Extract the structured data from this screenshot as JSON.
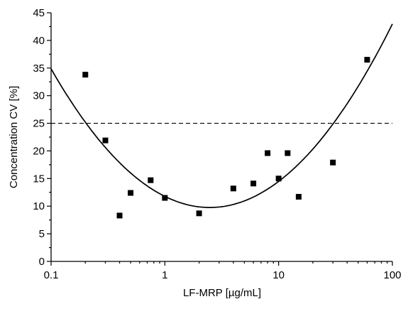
{
  "chart_data": {
    "type": "scatter",
    "title": "",
    "xlabel": "LF-MRP [µg/mL]",
    "ylabel": "Concentration CV [%]",
    "xscale": "log",
    "xlim": [
      0.1,
      100
    ],
    "ylim": [
      0,
      45
    ],
    "x_ticks": [
      "0.1",
      "1",
      "10",
      "100"
    ],
    "y_ticks": [
      "0",
      "5",
      "10",
      "15",
      "20",
      "25",
      "30",
      "35",
      "40",
      "45"
    ],
    "grid": false,
    "legend": "none",
    "points": [
      {
        "x": 0.2,
        "y": 33.8
      },
      {
        "x": 0.3,
        "y": 21.9
      },
      {
        "x": 0.4,
        "y": 8.3
      },
      {
        "x": 0.5,
        "y": 12.4
      },
      {
        "x": 0.75,
        "y": 14.7
      },
      {
        "x": 1.0,
        "y": 11.5
      },
      {
        "x": 2.0,
        "y": 8.7
      },
      {
        "x": 4.0,
        "y": 13.2
      },
      {
        "x": 6.0,
        "y": 14.1
      },
      {
        "x": 8.0,
        "y": 19.6
      },
      {
        "x": 10.0,
        "y": 15.0
      },
      {
        "x": 12.0,
        "y": 19.6
      },
      {
        "x": 15.0,
        "y": 11.7
      },
      {
        "x": 30.0,
        "y": 17.9
      },
      {
        "x": 60.0,
        "y": 36.5
      }
    ],
    "fit_curve": {
      "model": "quadratic in log10(x)",
      "x": [
        0.1,
        0.2,
        0.5,
        1,
        2.5,
        5,
        10,
        20,
        50,
        100
      ],
      "y": [
        35.4,
        24.9,
        15.4,
        11.7,
        9.9,
        11.0,
        14.6,
        20.5,
        32.2,
        42.4
      ]
    },
    "reference_line": {
      "y": 25,
      "style": "dashed"
    },
    "marker_color": "#000000",
    "line_color": "#000000"
  }
}
